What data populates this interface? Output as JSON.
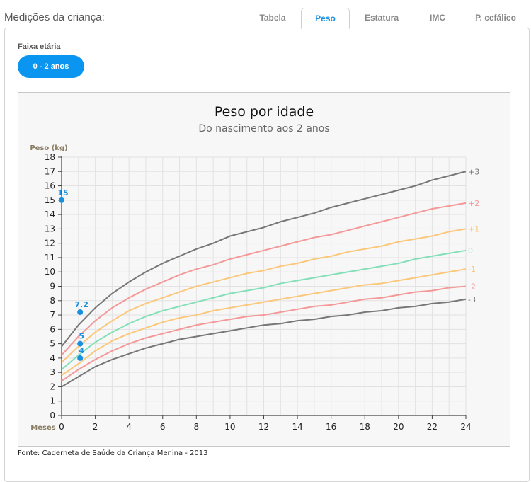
{
  "header": {
    "title": "Medições da criança:"
  },
  "tabs": [
    {
      "label": "Tabela",
      "active": false
    },
    {
      "label": "Peso",
      "active": true
    },
    {
      "label": "Estatura",
      "active": false
    },
    {
      "label": "IMC",
      "active": false
    },
    {
      "label": "P. cefálico",
      "active": false
    }
  ],
  "age_range": {
    "label": "Faixa etária",
    "selected": "0 - 2 anos"
  },
  "footer": {
    "source": "Fonte: Caderneta de Saúde da Criança Menina - 2013"
  },
  "colors": {
    "accent": "#0a96f0",
    "point": "#1a8fe0"
  },
  "chart_data": {
    "type": "line",
    "title": "Peso por idade",
    "subtitle": "Do nascimento aos 2 anos",
    "ylabel": "Peso (kg)",
    "xlabel": "Meses",
    "xlim": [
      0,
      24
    ],
    "ylim": [
      0,
      18
    ],
    "x_ticks": [
      0,
      2,
      4,
      6,
      8,
      10,
      12,
      14,
      16,
      18,
      20,
      22,
      24
    ],
    "y_ticks": [
      0,
      1,
      2,
      3,
      4,
      5,
      6,
      7,
      8,
      9,
      10,
      11,
      12,
      13,
      14,
      15,
      16,
      17,
      18
    ],
    "grid": true,
    "x": [
      0,
      1,
      2,
      3,
      4,
      5,
      6,
      7,
      8,
      9,
      10,
      11,
      12,
      13,
      14,
      15,
      16,
      17,
      18,
      19,
      20,
      21,
      22,
      23,
      24
    ],
    "series": [
      {
        "name": "+3",
        "color": "#777777",
        "values": [
          4.8,
          6.3,
          7.5,
          8.5,
          9.3,
          10.0,
          10.6,
          11.1,
          11.6,
          12.0,
          12.5,
          12.8,
          13.1,
          13.5,
          13.8,
          14.1,
          14.5,
          14.8,
          15.1,
          15.4,
          15.7,
          16.0,
          16.4,
          16.7,
          17.0
        ]
      },
      {
        "name": "+2",
        "color": "#f49898",
        "values": [
          4.2,
          5.5,
          6.6,
          7.5,
          8.2,
          8.8,
          9.3,
          9.8,
          10.2,
          10.5,
          10.9,
          11.2,
          11.5,
          11.8,
          12.1,
          12.4,
          12.6,
          12.9,
          13.2,
          13.5,
          13.8,
          14.1,
          14.4,
          14.6,
          14.8
        ]
      },
      {
        "name": "+1",
        "color": "#fbc77a",
        "values": [
          3.7,
          4.8,
          5.8,
          6.6,
          7.3,
          7.8,
          8.2,
          8.6,
          9.0,
          9.3,
          9.6,
          9.9,
          10.1,
          10.4,
          10.6,
          10.9,
          11.1,
          11.4,
          11.6,
          11.8,
          12.1,
          12.3,
          12.5,
          12.8,
          13.0
        ]
      },
      {
        "name": "0",
        "color": "#84dfb8",
        "values": [
          3.2,
          4.2,
          5.1,
          5.8,
          6.4,
          6.9,
          7.3,
          7.6,
          7.9,
          8.2,
          8.5,
          8.7,
          8.9,
          9.2,
          9.4,
          9.6,
          9.8,
          10.0,
          10.2,
          10.4,
          10.6,
          10.9,
          11.1,
          11.3,
          11.5
        ]
      },
      {
        "name": "-1",
        "color": "#fbc77a",
        "values": [
          2.8,
          3.6,
          4.5,
          5.2,
          5.7,
          6.1,
          6.5,
          6.8,
          7.0,
          7.3,
          7.5,
          7.7,
          7.9,
          8.1,
          8.3,
          8.5,
          8.7,
          8.9,
          9.1,
          9.2,
          9.4,
          9.6,
          9.8,
          10.0,
          10.2
        ]
      },
      {
        "name": "-2",
        "color": "#f49898",
        "values": [
          2.4,
          3.2,
          3.9,
          4.5,
          5.0,
          5.4,
          5.7,
          6.0,
          6.3,
          6.5,
          6.7,
          6.9,
          7.0,
          7.2,
          7.4,
          7.6,
          7.7,
          7.9,
          8.1,
          8.2,
          8.4,
          8.6,
          8.7,
          8.9,
          9.0
        ]
      },
      {
        "name": "-3",
        "color": "#777777",
        "values": [
          2.0,
          2.7,
          3.4,
          3.9,
          4.3,
          4.7,
          5.0,
          5.3,
          5.5,
          5.7,
          5.9,
          6.1,
          6.3,
          6.4,
          6.6,
          6.7,
          6.9,
          7.0,
          7.2,
          7.3,
          7.5,
          7.6,
          7.8,
          7.9,
          8.1
        ]
      }
    ],
    "points": [
      {
        "x": 0,
        "y": 15,
        "label": "15"
      },
      {
        "x": 1.1,
        "y": 7.2,
        "label": "7.2"
      },
      {
        "x": 1.1,
        "y": 5,
        "label": "5"
      },
      {
        "x": 1.1,
        "y": 4,
        "label": "4"
      }
    ]
  }
}
